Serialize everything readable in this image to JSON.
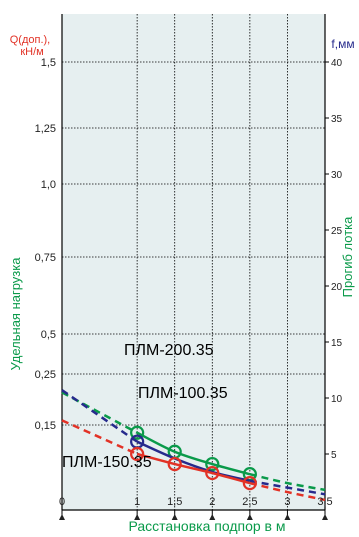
{
  "chart_data": {
    "type": "line",
    "y_left": {
      "label_line1": "Q(доп.),",
      "label_line2": "кН/м",
      "title": "Удельная нагрузка",
      "ticks": [
        0.15,
        0.25,
        0.5,
        0.75,
        1.0,
        1.25,
        1.5
      ],
      "tick_labels": [
        "0,15",
        "0,25",
        "0,5",
        "0,75",
        "1,0",
        "1,25",
        "1,5"
      ]
    },
    "y_right": {
      "label": "f,мм",
      "title": "Прогиб лотка",
      "ticks": [
        5,
        10,
        15,
        20,
        25,
        30,
        35,
        40
      ],
      "tick_labels": [
        "5",
        "10",
        "15",
        "20",
        "25",
        "30",
        "35",
        "40"
      ]
    },
    "x": {
      "label": "Расстановка подпор в м",
      "ticks": [
        0,
        1,
        1.5,
        2,
        2.5,
        3,
        3.5
      ],
      "tick_labels": [
        "0",
        "1",
        "1,5",
        "2",
        "2,5",
        "3",
        "3,5"
      ],
      "range": [
        0,
        3.5
      ]
    },
    "series": [
      {
        "name": "ПЛМ-200.35",
        "color": "#0a9a4a",
        "x": [
          0,
          1,
          1.5,
          2,
          2.5,
          3,
          3.5
        ],
        "f": [
          10.5,
          6.9,
          5.2,
          4.1,
          3.2,
          2.4,
          1.8
        ],
        "markers": [
          1,
          1.5,
          2,
          2.5
        ],
        "solid_to": 2.5
      },
      {
        "name": "ПЛМ-100.35",
        "color": "#262a8c",
        "x": [
          0,
          1,
          1.5,
          2,
          2.5,
          3,
          3.5
        ],
        "f": [
          10.7,
          6.1,
          4.6,
          3.4,
          2.6,
          2.0,
          1.4
        ],
        "markers": [
          1
        ],
        "solid_to": 2.5
      },
      {
        "name": "ПЛМ-150.35",
        "color": "#e23226",
        "x": [
          0,
          1,
          1.5,
          2,
          2.5,
          3,
          3.5
        ],
        "f": [
          8.0,
          5.0,
          4.1,
          3.3,
          2.4,
          1.6,
          0.9
        ],
        "markers": [
          1,
          1.5,
          2,
          2.5
        ],
        "solid_to": 2.5
      }
    ],
    "colors": {
      "plot_bg": "#e6eff0",
      "grid": "#000000",
      "y_left_axis_label": "#e23226",
      "y_left_title": "#0a9a4a",
      "y_right_axis_label": "#262a8c",
      "y_right_title": "#0a9a4a",
      "x_axis_label": "#0a9a4a"
    }
  }
}
